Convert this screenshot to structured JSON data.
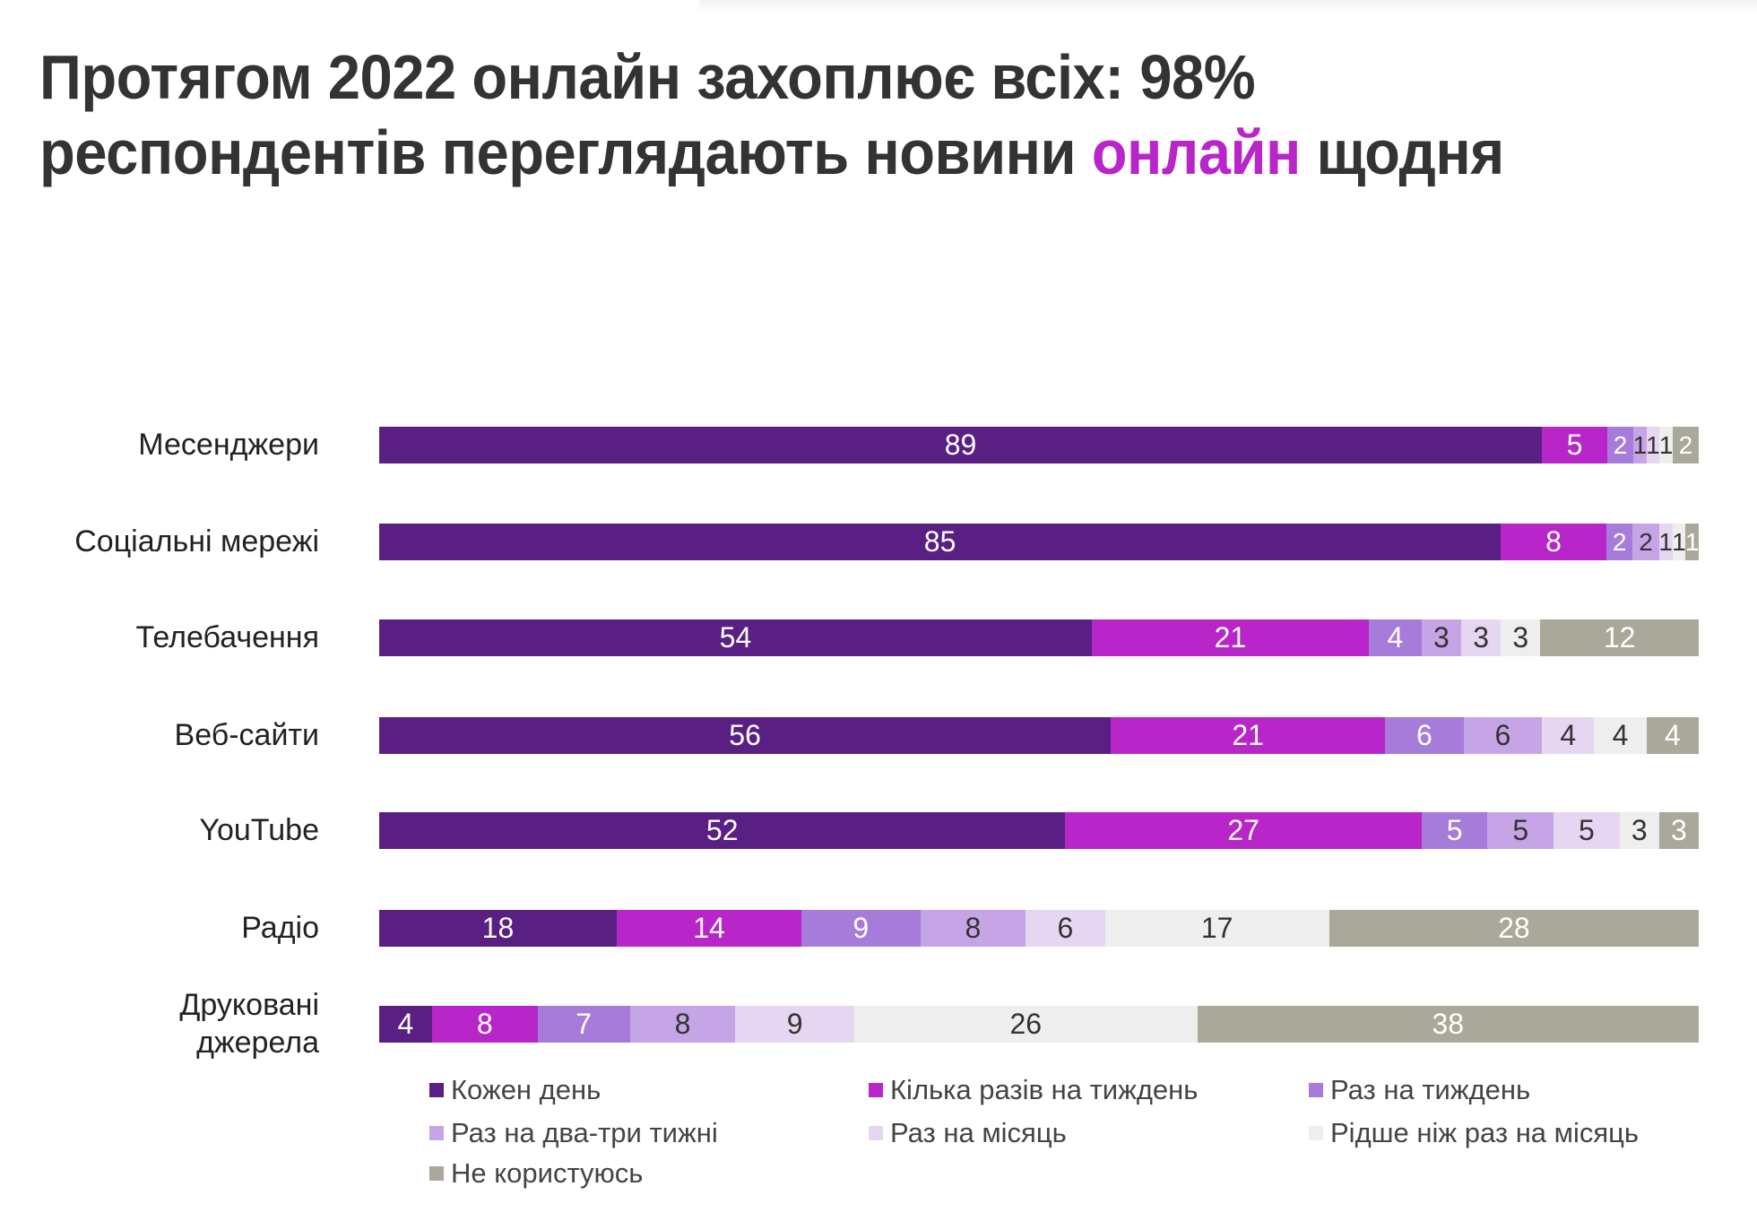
{
  "title": {
    "part1": "Протягом 2022 онлайн захоплює всіх: 98%",
    "part2": "респондентів переглядають новини ",
    "highlight": "онлайн",
    "part3": " щодня"
  },
  "chart_data": {
    "type": "bar",
    "orientation": "horizontal-stacked-100",
    "categories": [
      "Месенджери",
      "Соціальні мережі",
      "Телебачення",
      "Веб-сайти",
      "YouTube",
      "Радіо",
      "Друковані джерела"
    ],
    "series": [
      {
        "name": "Кожен день",
        "color": "#5a1f82",
        "values": [
          89,
          85,
          54,
          56,
          52,
          18,
          4
        ]
      },
      {
        "name": "Кілька разів на тиждень",
        "color": "#b825c8",
        "values": [
          5,
          8,
          21,
          21,
          27,
          14,
          8
        ]
      },
      {
        "name": "Раз на тиждень",
        "color": "#a77bd9",
        "values": [
          2,
          2,
          4,
          6,
          5,
          9,
          7
        ]
      },
      {
        "name": "Раз на два-три тижні",
        "color": "#c6a5e6",
        "values": [
          1,
          2,
          3,
          6,
          5,
          8,
          8
        ]
      },
      {
        "name": "Раз на місяць",
        "color": "#e6d6f2",
        "values": [
          1,
          1,
          3,
          4,
          5,
          6,
          9
        ]
      },
      {
        "name": "Рідше ніж раз на місяць",
        "color": "#efeeee",
        "values": [
          1,
          1,
          3,
          4,
          3,
          17,
          26
        ]
      },
      {
        "name": "Не користуюсь",
        "color": "#aaa89b",
        "values": [
          2,
          1,
          12,
          4,
          3,
          28,
          38
        ]
      }
    ],
    "legend_position": "bottom"
  }
}
